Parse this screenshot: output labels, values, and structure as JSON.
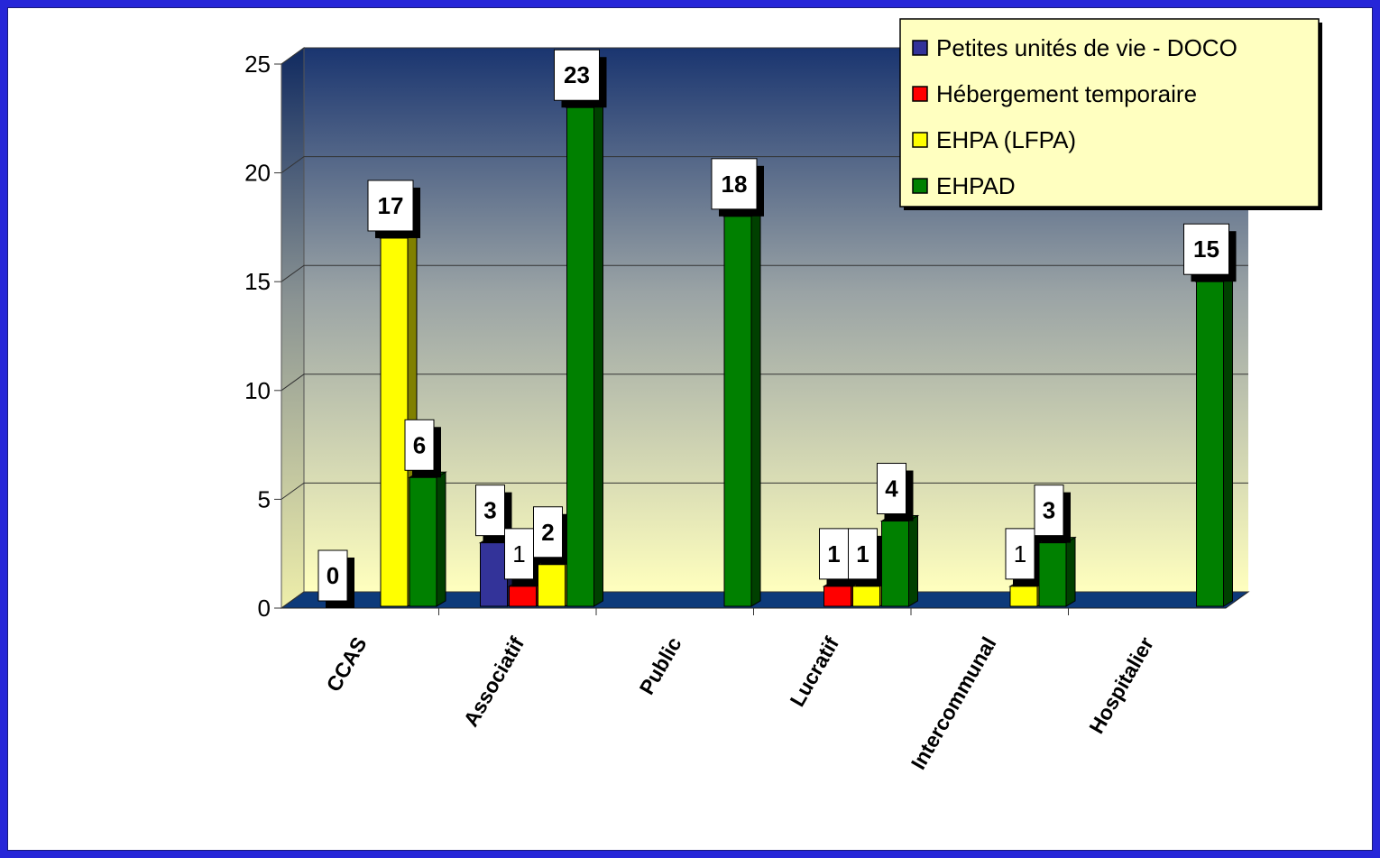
{
  "chart_data": {
    "type": "bar",
    "title": "",
    "xlabel": "",
    "ylabel": "",
    "ylim": [
      0,
      25
    ],
    "yticks": [
      0,
      5,
      10,
      15,
      20,
      25
    ],
    "grid": true,
    "legend_position": "top-right",
    "categories": [
      "CCAS",
      "Associatif",
      "Public",
      "Lucratif",
      "Intercommunal",
      "Hospitalier"
    ],
    "series": [
      {
        "name": "Petites unités de vie - DOCO",
        "color": "#333399",
        "values": [
          0,
          3,
          null,
          null,
          null,
          null
        ]
      },
      {
        "name": "Hébergement temporaire",
        "color": "#ff0000",
        "values": [
          null,
          1,
          null,
          1,
          null,
          null
        ]
      },
      {
        "name": "EHPA (LFPA)",
        "color": "#ffff00",
        "values": [
          17,
          2,
          null,
          1,
          1,
          null
        ]
      },
      {
        "name": "EHPAD",
        "color": "#008000",
        "values": [
          6,
          23,
          18,
          4,
          3,
          15
        ]
      }
    ],
    "data_labels_bold": [
      [
        true,
        true,
        false,
        false,
        false,
        false
      ],
      [
        false,
        false,
        false,
        true,
        false,
        false
      ],
      [
        true,
        true,
        false,
        true,
        false,
        false
      ],
      [
        true,
        true,
        true,
        true,
        true,
        true
      ]
    ]
  }
}
